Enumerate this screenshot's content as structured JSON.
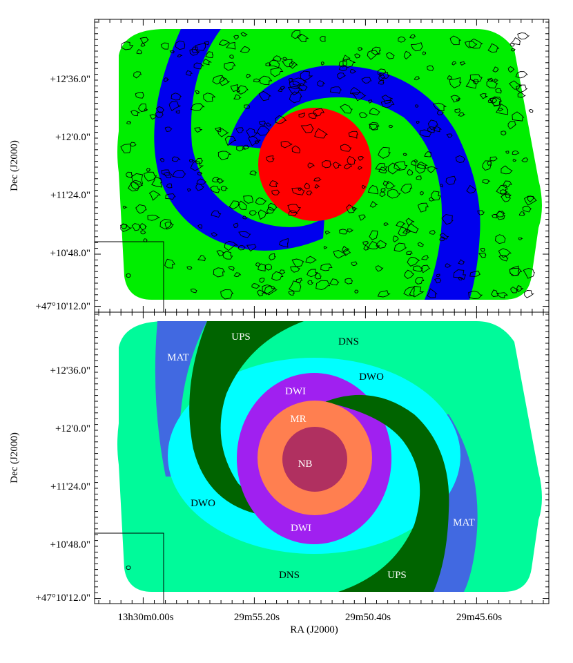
{
  "axes": {
    "xlabel": "RA (J2000)",
    "ylabel": "Dec (J2000)",
    "x_tick_labels": [
      "13h30m0.00s",
      "29m55.20s",
      "29m50.40s",
      "29m45.60s"
    ],
    "y_tick_labels": [
      "+12'36.0\"",
      "+12'0.0\"",
      "+11'24.0\"",
      "+10'48.0\"",
      "+47°10'12.0\""
    ]
  },
  "top_panel": {
    "regions": [
      {
        "name": "disk",
        "color": "#00ee00"
      },
      {
        "name": "spiral-arms",
        "color": "#0000ee"
      },
      {
        "name": "center",
        "color": "#ff0000"
      }
    ],
    "contour_color": "#000000"
  },
  "bottom_panel": {
    "colors": {
      "DNS": "#00fa9a",
      "MAT": "#4169e1",
      "UPS": "#006400",
      "DWO": "#00ffff",
      "DWI": "#a020f0",
      "MR": "#ff7f50",
      "NB": "#b03060"
    },
    "labels": {
      "mat_top": "MAT",
      "ups_top": "UPS",
      "dns_top": "DNS",
      "dwo_top": "DWO",
      "dwi_top": "DWI",
      "mr": "MR",
      "nb": "NB",
      "dwo_bottom": "DWO",
      "dwi_bottom": "DWI",
      "mat_bottom": "MAT",
      "dns_bottom": "DNS",
      "ups_bottom": "UPS"
    }
  }
}
